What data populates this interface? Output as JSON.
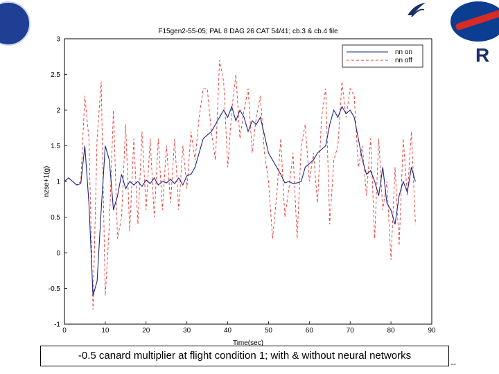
{
  "slide": {
    "caption": "-0.5 canard multiplier at flight condition 1; with & without neural networks"
  },
  "icons": {
    "left_logo": "seal-logo-icon",
    "nasa_logo": "nasa-meatball-icon",
    "bird_logo": "bird-logo-icon",
    "r_logo": "r-logo-icon"
  },
  "chart_data": {
    "type": "line",
    "title": "F15gen2-55-05; PAL 8 DAG 26 CAT 54/41; cb.3 & cb.4 file",
    "xlabel": "Time(sec)",
    "ylabel": "nzse+1(g)",
    "xlim": [
      0,
      90
    ],
    "ylim": [
      -1,
      3
    ],
    "xticks": [
      "0",
      "10",
      "20",
      "30",
      "40",
      "50",
      "60",
      "70",
      "80",
      "90"
    ],
    "yticks": [
      "3",
      "2.5",
      "2",
      "1.5",
      "1",
      "0.5",
      "0",
      "-0.5",
      "-1"
    ],
    "grid": false,
    "legend_position": "top-right",
    "series": [
      {
        "name": "nn on",
        "color": "#1a237e",
        "style": "solid",
        "x": [
          0,
          1,
          2,
          3,
          4,
          5,
          6,
          7,
          8,
          9,
          10,
          11,
          12,
          13,
          14,
          15,
          16,
          17,
          18,
          19,
          20,
          21,
          22,
          23,
          24,
          25,
          26,
          27,
          28,
          29,
          30,
          31,
          32,
          33,
          34,
          35,
          36,
          37,
          38,
          39,
          40,
          41,
          42,
          43,
          44,
          45,
          46,
          47,
          48,
          49,
          50,
          51,
          52,
          53,
          54,
          55,
          56,
          57,
          58,
          59,
          60,
          61,
          62,
          63,
          64,
          65,
          66,
          67,
          68,
          69,
          70,
          71,
          72,
          73,
          74,
          75,
          76,
          77,
          78,
          79,
          80,
          81,
          82,
          83,
          84,
          85,
          86
        ],
        "y": [
          1.0,
          1.05,
          1.0,
          0.95,
          0.97,
          1.5,
          0.7,
          -0.6,
          -0.4,
          0.6,
          1.5,
          1.3,
          0.6,
          0.8,
          1.1,
          0.9,
          1.0,
          0.95,
          1.0,
          0.93,
          1.02,
          0.97,
          1.05,
          0.95,
          1.0,
          0.98,
          1.03,
          0.97,
          1.05,
          0.95,
          1.08,
          1.1,
          1.2,
          1.4,
          1.6,
          1.65,
          1.7,
          1.8,
          1.9,
          2.0,
          1.9,
          2.05,
          1.85,
          2.0,
          1.9,
          1.7,
          1.85,
          1.8,
          1.9,
          1.65,
          1.4,
          1.3,
          1.2,
          1.1,
          0.98,
          1.0,
          0.97,
          0.98,
          1.0,
          1.2,
          1.25,
          1.3,
          1.4,
          1.45,
          1.5,
          1.8,
          2.0,
          1.9,
          2.05,
          1.95,
          2.0,
          1.9,
          1.6,
          1.3,
          1.1,
          1.15,
          1.0,
          0.8,
          1.2,
          0.7,
          0.6,
          0.4,
          0.8,
          1.0,
          0.85,
          1.2,
          1.0
        ]
      },
      {
        "name": "nn off",
        "color": "#e53935",
        "style": "dashed",
        "x": [
          0,
          1,
          2,
          3,
          4,
          5,
          6,
          7,
          8,
          9,
          10,
          11,
          12,
          13,
          14,
          15,
          16,
          17,
          18,
          19,
          20,
          21,
          22,
          23,
          24,
          25,
          26,
          27,
          28,
          29,
          30,
          31,
          32,
          33,
          34,
          35,
          36,
          37,
          38,
          39,
          40,
          41,
          42,
          43,
          44,
          45,
          46,
          47,
          48,
          49,
          50,
          51,
          52,
          53,
          54,
          55,
          56,
          57,
          58,
          59,
          60,
          61,
          62,
          63,
          64,
          65,
          66,
          67,
          68,
          69,
          70,
          71,
          72,
          73,
          74,
          75,
          76,
          77,
          78,
          79,
          80,
          81,
          82,
          83,
          84,
          85,
          86
        ],
        "y": [
          1.0,
          1.05,
          1.0,
          0.95,
          1.0,
          2.2,
          1.6,
          -0.8,
          1.6,
          2.4,
          -0.6,
          0.4,
          2.0,
          0.2,
          0.5,
          1.8,
          0.3,
          1.6,
          0.4,
          1.7,
          0.6,
          1.6,
          0.5,
          1.6,
          0.6,
          1.5,
          0.7,
          1.6,
          0.6,
          1.5,
          0.9,
          1.7,
          1.3,
          1.9,
          2.3,
          2.3,
          1.7,
          1.3,
          2.7,
          2.4,
          1.2,
          2.0,
          2.5,
          1.6,
          2.0,
          2.3,
          1.4,
          1.9,
          2.2,
          1.4,
          1.0,
          0.2,
          0.8,
          1.6,
          0.5,
          0.9,
          1.4,
          0.2,
          1.5,
          1.8,
          1.0,
          1.4,
          0.7,
          1.9,
          2.3,
          0.4,
          1.3,
          1.5,
          2.4,
          1.9,
          2.3,
          2.2,
          1.2,
          1.5,
          0.8,
          1.6,
          0.2,
          1.6,
          0.6,
          1.0,
          -0.1,
          1.2,
          0.1,
          1.6,
          0.8,
          1.7,
          0.4
        ]
      }
    ]
  }
}
